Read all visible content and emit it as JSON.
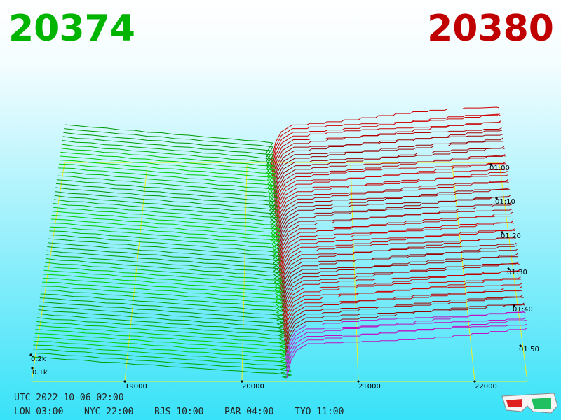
{
  "header": {
    "bid": "20374",
    "ask": "20380"
  },
  "price_axis": {
    "labels": [
      "19000",
      "20000",
      "21000",
      "22000"
    ]
  },
  "time_axis": {
    "labels": [
      "01:00",
      "01:10",
      "01:20",
      "01:30",
      "01:40",
      "01:50"
    ]
  },
  "depth_axis": {
    "labels": [
      "0.2k",
      "0.1k"
    ]
  },
  "footer": {
    "utc": "UTC 2022-10-06 02:00",
    "clocks": [
      "LON 03:00",
      "NYC 22:00",
      "BJS 10:00",
      "PAR 04:00",
      "TYO 11:00"
    ]
  }
}
